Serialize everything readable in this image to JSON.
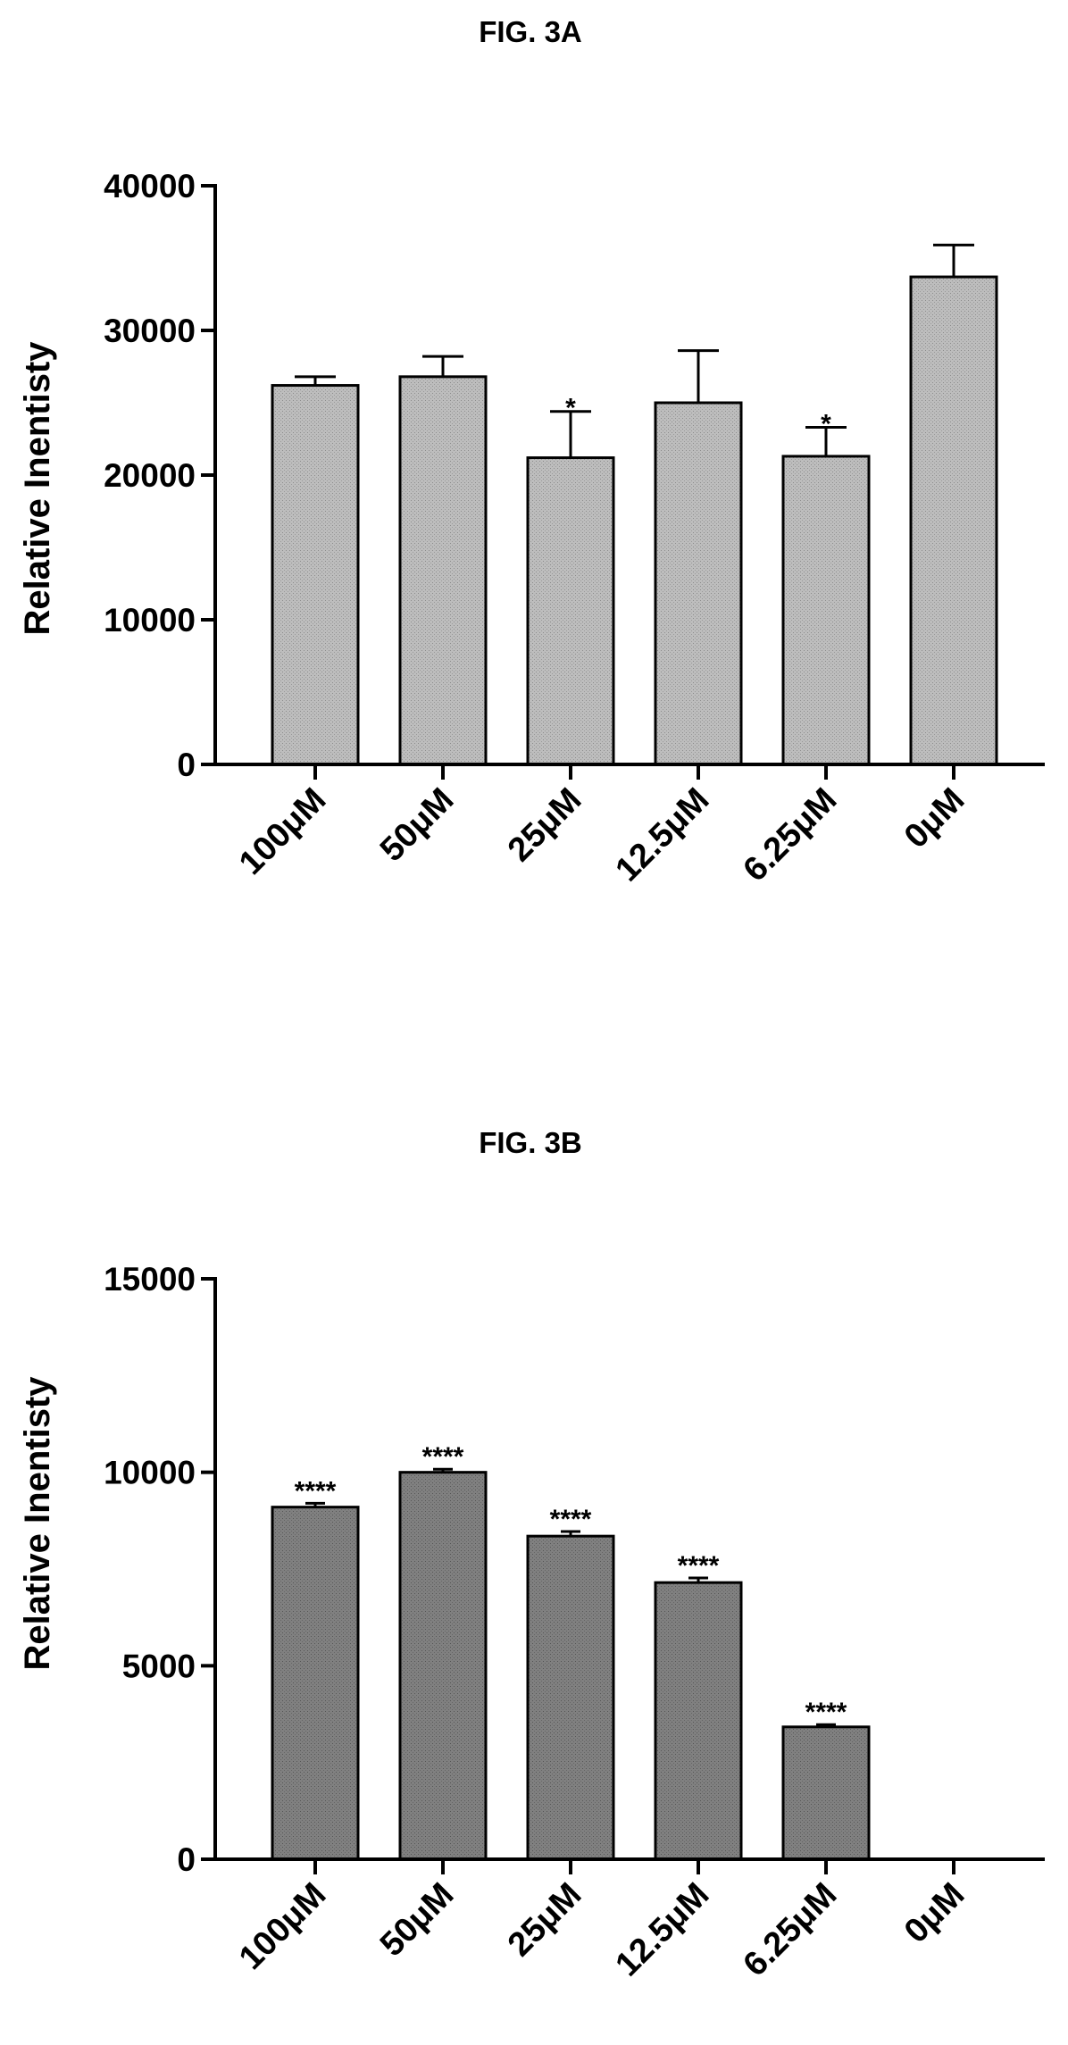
{
  "chart_data": [
    {
      "type": "bar",
      "title": "FIG. 3A",
      "ylabel": "Relative Inentisty",
      "xlabel": "",
      "categories": [
        "100μM",
        "50μM",
        "25μM",
        "12.5μM",
        "6.25μM",
        "0μM"
      ],
      "values": [
        26200,
        26800,
        21200,
        25000,
        21300,
        33700
      ],
      "errors": [
        600,
        1400,
        3200,
        3600,
        2000,
        2200
      ],
      "annotations": [
        "",
        "",
        "*",
        "",
        "*",
        ""
      ],
      "ylim": [
        0,
        40000
      ],
      "yticks": [
        0,
        10000,
        20000,
        30000,
        40000
      ],
      "grid": false,
      "legend": "none",
      "bar_color": "#b3b3b3"
    },
    {
      "type": "bar",
      "title": "FIG. 3B",
      "ylabel": "Relative Inentisty",
      "xlabel": "",
      "categories": [
        "100μM",
        "50μM",
        "25μM",
        "12.5μM",
        "6.25μM",
        "0μM"
      ],
      "values": [
        9100,
        10000,
        8350,
        7150,
        3420,
        0
      ],
      "errors": [
        100,
        80,
        120,
        120,
        60,
        0
      ],
      "annotations": [
        "****",
        "****",
        "****",
        "****",
        "****",
        ""
      ],
      "ylim": [
        0,
        15000
      ],
      "yticks": [
        0,
        5000,
        10000,
        15000
      ],
      "grid": false,
      "legend": "none",
      "bar_color": "#7a7a7a"
    }
  ]
}
